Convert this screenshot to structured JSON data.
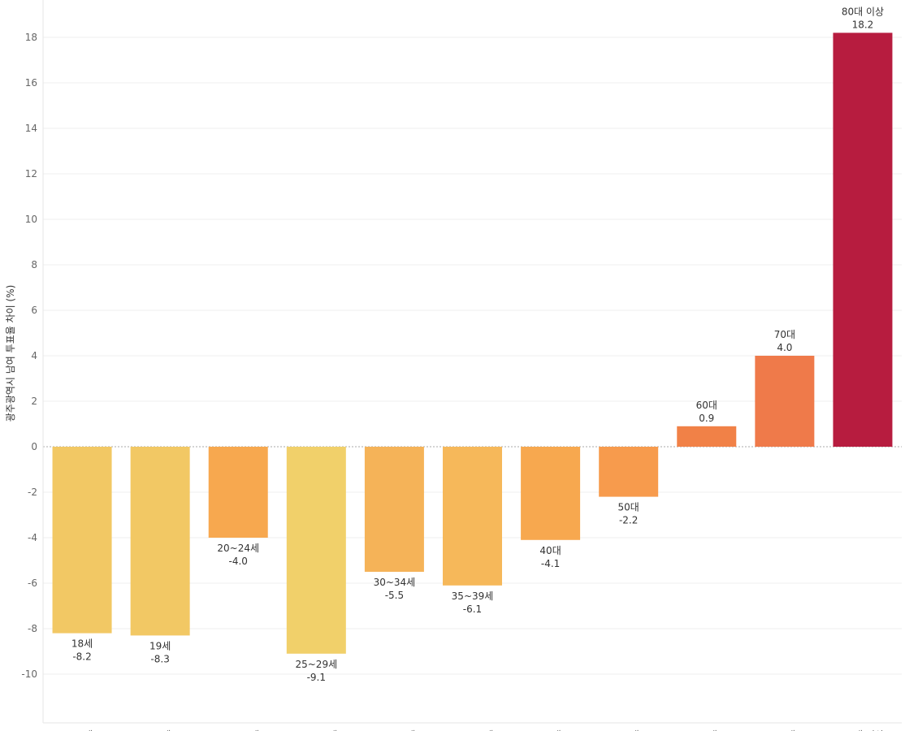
{
  "chart_data": {
    "type": "bar",
    "title": "",
    "xlabel": "",
    "ylabel": "광주광역시 남여 투표율 차이 (%)",
    "ylim": [
      -11.5,
      19.5
    ],
    "yticks": [
      -10,
      -8,
      -6,
      -4,
      -2,
      0,
      2,
      4,
      6,
      8,
      10,
      12,
      14,
      16,
      18
    ],
    "ytick_labels": [
      "-10",
      "-8",
      "-6",
      "-4",
      "-2",
      "0",
      "2",
      "4",
      "6",
      "8",
      "10",
      "12",
      "14",
      "16",
      "18"
    ],
    "categories": [
      "18세",
      "19세",
      "20~24세",
      "25~29세",
      "30~34세",
      "35~39세",
      "40대",
      "50대",
      "60대",
      "70대",
      "80대 이상"
    ],
    "values": [
      -8.2,
      -8.3,
      -4.0,
      -9.1,
      -5.5,
      -6.1,
      -4.1,
      -2.2,
      0.9,
      4.0,
      18.2
    ],
    "value_labels": [
      "-8.2",
      "-8.3",
      "-4.0",
      "-9.1",
      "-5.5",
      "-6.1",
      "-4.1",
      "-2.2",
      "0.9",
      "4.0",
      "18.2"
    ],
    "colors": [
      "#f2c864",
      "#f2c864",
      "#f7a84f",
      "#f1d06a",
      "#f5b358",
      "#f6b85a",
      "#f7a84f",
      "#f79b4d",
      "#f18147",
      "#ef7a4a",
      "#b71c3f"
    ],
    "grid": true,
    "legend": "none"
  }
}
